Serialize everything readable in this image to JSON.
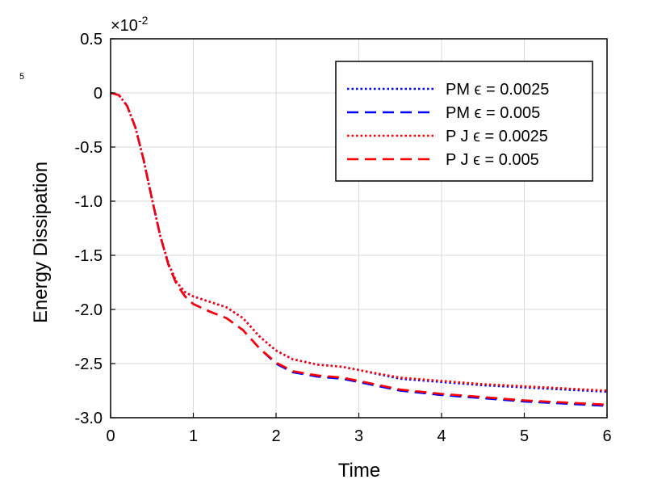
{
  "chart_data": {
    "type": "line",
    "xlabel": "Time",
    "ylabel": "Energy Dissipation",
    "multiplier_label": "×10",
    "multiplier_exponent": "-2",
    "stray_label": "5",
    "xlim": [
      0,
      6
    ],
    "ylim": [
      -3.0,
      0.5
    ],
    "x_ticks": [
      "0",
      "1",
      "2",
      "3",
      "4",
      "5",
      "6"
    ],
    "y_ticks": [
      "0.5",
      "0",
      "-0.5",
      "-1.0",
      "-1.5",
      "-2.0",
      "-2.5",
      "-3.0"
    ],
    "y_tick_values": [
      0.5,
      0,
      -0.5,
      -1.0,
      -1.5,
      -2.0,
      -2.5,
      -3.0
    ],
    "grid": true,
    "legend_position": "top-right",
    "series": [
      {
        "name": "PM  ϵ = 0.0025",
        "color": "#0000ff",
        "style": "dotted",
        "x": [
          0,
          0.1,
          0.2,
          0.3,
          0.4,
          0.5,
          0.6,
          0.7,
          0.8,
          0.9,
          1.0,
          1.2,
          1.4,
          1.6,
          1.8,
          2.0,
          2.2,
          2.5,
          2.8,
          3.0,
          3.5,
          4.0,
          4.5,
          5.0,
          5.5,
          6.0
        ],
        "y": [
          0,
          -0.02,
          -0.12,
          -0.32,
          -0.62,
          -0.98,
          -1.32,
          -1.58,
          -1.75,
          -1.84,
          -1.88,
          -1.93,
          -1.98,
          -2.08,
          -2.25,
          -2.38,
          -2.46,
          -2.51,
          -2.53,
          -2.56,
          -2.64,
          -2.67,
          -2.7,
          -2.72,
          -2.74,
          -2.76
        ]
      },
      {
        "name": "PM  ϵ = 0.005",
        "color": "#0000ff",
        "style": "dashed",
        "x": [
          0,
          0.1,
          0.2,
          0.3,
          0.4,
          0.5,
          0.6,
          0.7,
          0.8,
          0.9,
          1.0,
          1.2,
          1.4,
          1.6,
          1.8,
          2.0,
          2.2,
          2.5,
          2.8,
          3.0,
          3.5,
          4.0,
          4.5,
          5.0,
          5.5,
          6.0
        ],
        "y": [
          0,
          -0.02,
          -0.12,
          -0.32,
          -0.62,
          -0.98,
          -1.32,
          -1.59,
          -1.77,
          -1.88,
          -1.95,
          -2.02,
          -2.08,
          -2.19,
          -2.36,
          -2.5,
          -2.58,
          -2.62,
          -2.64,
          -2.67,
          -2.75,
          -2.79,
          -2.82,
          -2.85,
          -2.87,
          -2.89
        ]
      },
      {
        "name": "P J  ϵ = 0.0025",
        "color": "#ff0000",
        "style": "dotted",
        "x": [
          0,
          0.1,
          0.2,
          0.3,
          0.4,
          0.5,
          0.6,
          0.7,
          0.8,
          0.9,
          1.0,
          1.2,
          1.4,
          1.6,
          1.8,
          2.0,
          2.2,
          2.5,
          2.8,
          3.0,
          3.5,
          4.0,
          4.5,
          5.0,
          5.5,
          6.0
        ],
        "y": [
          0,
          -0.02,
          -0.12,
          -0.32,
          -0.62,
          -0.98,
          -1.32,
          -1.58,
          -1.75,
          -1.84,
          -1.88,
          -1.93,
          -1.98,
          -2.08,
          -2.25,
          -2.38,
          -2.46,
          -2.51,
          -2.53,
          -2.56,
          -2.63,
          -2.66,
          -2.69,
          -2.71,
          -2.73,
          -2.75
        ]
      },
      {
        "name": "P J  ϵ = 0.005",
        "color": "#ff0000",
        "style": "dashed",
        "x": [
          0,
          0.1,
          0.2,
          0.3,
          0.4,
          0.5,
          0.6,
          0.7,
          0.8,
          0.9,
          1.0,
          1.2,
          1.4,
          1.6,
          1.8,
          2.0,
          2.2,
          2.5,
          2.8,
          3.0,
          3.5,
          4.0,
          4.5,
          5.0,
          5.5,
          6.0
        ],
        "y": [
          0,
          -0.02,
          -0.12,
          -0.32,
          -0.62,
          -0.98,
          -1.32,
          -1.59,
          -1.77,
          -1.88,
          -1.95,
          -2.02,
          -2.08,
          -2.19,
          -2.36,
          -2.49,
          -2.57,
          -2.61,
          -2.63,
          -2.66,
          -2.74,
          -2.78,
          -2.81,
          -2.84,
          -2.86,
          -2.88
        ]
      }
    ]
  }
}
